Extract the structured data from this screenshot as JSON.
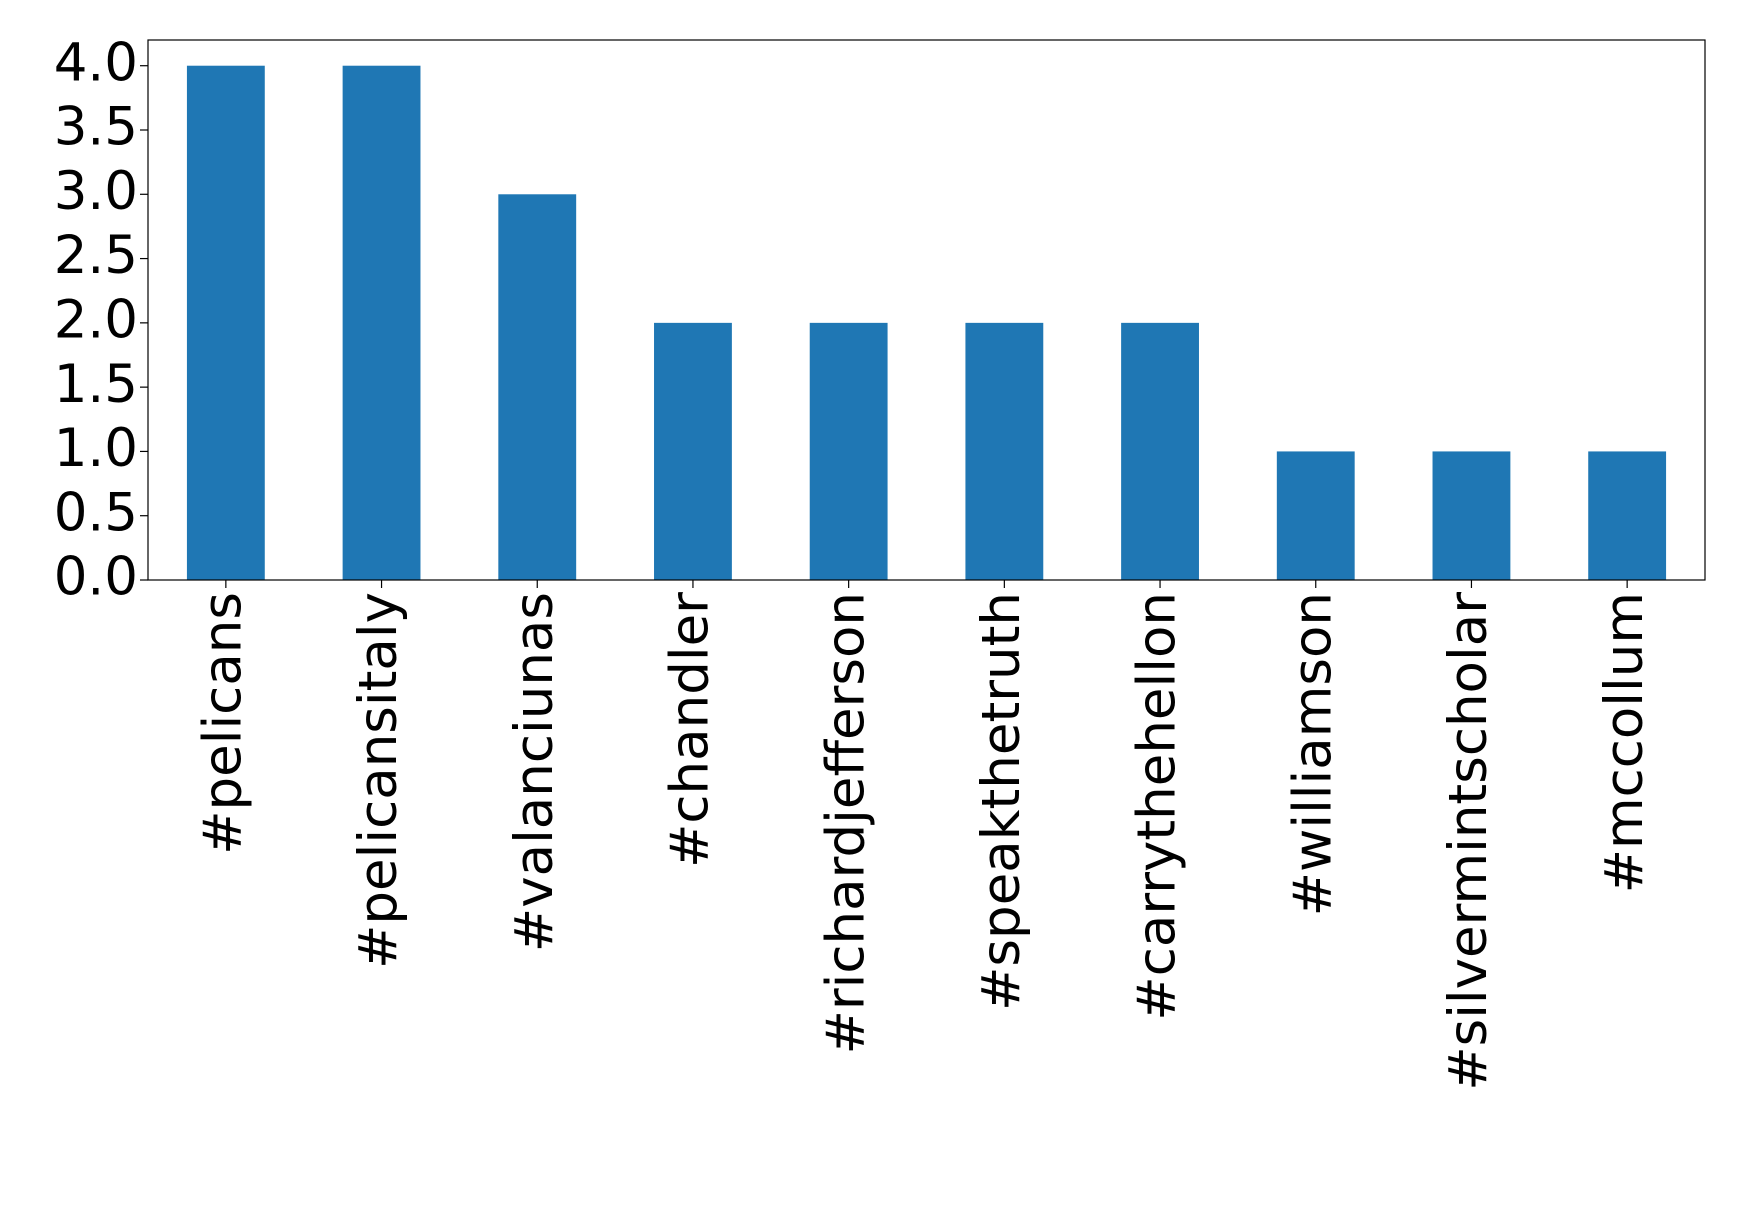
{
  "chart_data": {
    "type": "bar",
    "categories": [
      "#pelicans",
      "#pelicansitaly",
      "#valanciunas",
      "#chandler",
      "#richardjefferson",
      "#speakthetruth",
      "#carrythehellon",
      "#williamson",
      "#silvermintscholar",
      "#mccollum"
    ],
    "values": [
      4,
      4,
      3,
      2,
      2,
      2,
      2,
      1,
      1,
      1
    ],
    "color": "#1f77b4",
    "ylim": [
      0,
      4.2
    ],
    "yticks": [
      {
        "value": 0,
        "label": "0.0"
      },
      {
        "value": 0.5,
        "label": "0.5"
      },
      {
        "value": 1,
        "label": "1.0"
      },
      {
        "value": 1.5,
        "label": "1.5"
      },
      {
        "value": 2,
        "label": "2.0"
      },
      {
        "value": 2.5,
        "label": "2.5"
      },
      {
        "value": 3,
        "label": "3.0"
      },
      {
        "value": 3.5,
        "label": "3.5"
      },
      {
        "value": 4,
        "label": "4.0"
      }
    ],
    "grid": false
  }
}
